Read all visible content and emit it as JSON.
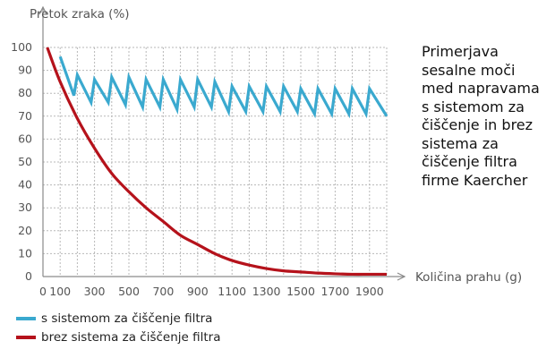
{
  "chart_data": {
    "type": "line",
    "ylabel": "Pretok zraka (%)",
    "xlabel": "Količina prahu (g)",
    "xlim": [
      0,
      2000
    ],
    "ylim": [
      0,
      100
    ],
    "x_ticks": [
      0,
      100,
      300,
      500,
      700,
      900,
      1100,
      1300,
      1500,
      1700,
      1900
    ],
    "y_ticks": [
      0,
      10,
      20,
      30,
      40,
      50,
      60,
      70,
      80,
      90,
      100
    ],
    "grid": true,
    "legend_position": "bottom-left",
    "annotation": "Primerjava\nsesalne moči\nmed napravama\ns sistemom za\nčiščenje in brez\nsistema za\nčiščenje filtra\nfirme Kaercher",
    "series": [
      {
        "name": "s sistemom za čiščenje filtra",
        "color": "#3aa9cf",
        "x": [
          100,
          180,
          200,
          280,
          300,
          380,
          400,
          480,
          500,
          580,
          600,
          680,
          700,
          780,
          800,
          880,
          900,
          980,
          1000,
          1080,
          1100,
          1180,
          1200,
          1280,
          1300,
          1380,
          1400,
          1480,
          1500,
          1580,
          1600,
          1680,
          1700,
          1780,
          1800,
          1880,
          1900,
          2000
        ],
        "y": [
          96,
          79,
          88,
          76,
          86,
          76,
          87,
          75,
          87,
          74,
          86,
          74,
          86,
          73,
          86,
          74,
          86,
          74,
          85,
          72,
          83,
          72,
          83,
          72,
          83,
          72,
          83,
          72,
          82,
          71,
          82,
          71,
          82,
          71,
          82,
          71,
          82,
          70
        ]
      },
      {
        "name": "brez sistema za čiščenje filtra",
        "color": "#b5121b",
        "x": [
          25,
          100,
          200,
          300,
          400,
          500,
          600,
          700,
          800,
          900,
          1000,
          1100,
          1200,
          1300,
          1400,
          1500,
          1600,
          1700,
          1800,
          1900,
          2000
        ],
        "y": [
          100,
          85,
          69,
          56,
          45,
          37,
          30,
          24,
          18,
          14,
          10,
          7,
          5,
          3.5,
          2.5,
          2,
          1.5,
          1.2,
          1,
          1,
          1
        ]
      }
    ]
  }
}
